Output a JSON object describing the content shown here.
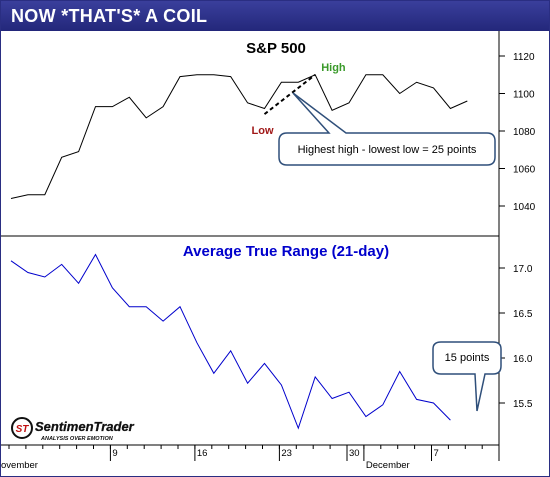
{
  "header": {
    "title": "NOW *THAT'S* A COIL"
  },
  "chart_data": [
    {
      "type": "line",
      "title": "S&P 500",
      "ylim": [
        1030,
        1125
      ],
      "yticks": [
        1040,
        1060,
        1080,
        1100,
        1120
      ],
      "series": [
        {
          "values": [
            1044,
            1046,
            1046,
            1066,
            1069,
            1093,
            1093,
            1098,
            1087,
            1093,
            1109,
            1110,
            1110,
            1109,
            1095,
            1092,
            1106,
            1106,
            1110,
            1091,
            1095,
            1110,
            1110,
            1100,
            1106,
            1103,
            1092,
            1096
          ]
        }
      ],
      "annotations": {
        "low_label": "Low",
        "high_label": "High",
        "callout": "Highest high - lowest low = 25 points",
        "low_value": 1089,
        "high_value": 1110,
        "low_index": 15,
        "high_index": 18
      }
    },
    {
      "type": "line",
      "title": "Average True Range (21-day)",
      "ylim": [
        15.1,
        17.3
      ],
      "yticks": [
        15.5,
        16.0,
        16.5,
        17.0
      ],
      "series": [
        {
          "values": [
            17.08,
            16.95,
            16.9,
            17.04,
            16.83,
            17.15,
            16.78,
            16.57,
            16.57,
            16.41,
            16.57,
            16.17,
            15.83,
            16.08,
            15.72,
            15.94,
            15.7,
            15.22,
            15.79,
            15.55,
            15.62,
            15.35,
            15.48,
            15.85,
            15.54,
            15.5,
            15.31
          ]
        }
      ],
      "annotations": {
        "callout": "15 points"
      }
    }
  ],
  "x_axis": {
    "ticks": [
      {
        "label": "ovember",
        "index": 0
      },
      {
        "label": "9",
        "index": 6
      },
      {
        "label": "16",
        "index": 11
      },
      {
        "label": "23",
        "index": 16
      },
      {
        "label": "30",
        "index": 20
      },
      {
        "label": "December",
        "index": 21
      },
      {
        "label": "7",
        "index": 25
      }
    ]
  },
  "logo": {
    "name": "SentimenTrader",
    "tagline": "ANALYSIS OVER EMOTION"
  },
  "colors": {
    "header": "#2a2e82",
    "atr_line": "#0000cc",
    "title_blue": "#0000cc",
    "high_green": "#3a9a2a",
    "low_red": "#a01818"
  }
}
